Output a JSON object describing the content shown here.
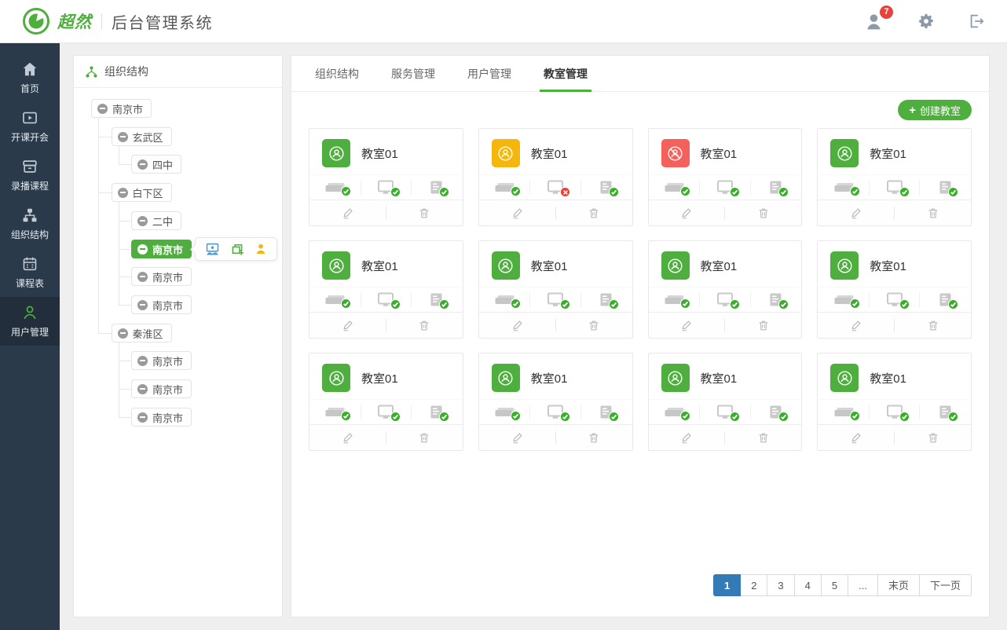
{
  "header": {
    "brand": "超然",
    "title": "后台管理系统",
    "notification_count": "7"
  },
  "sidebar": {
    "items": [
      {
        "key": "home",
        "label": "首页",
        "active": false
      },
      {
        "key": "video",
        "label": "开课开会",
        "active": false
      },
      {
        "key": "archive",
        "label": "录播课程",
        "active": false
      },
      {
        "key": "sitemap",
        "label": "组织结构",
        "active": false
      },
      {
        "key": "calendar",
        "label": "课程表",
        "active": false
      },
      {
        "key": "user",
        "label": "用户管理",
        "active": true
      }
    ]
  },
  "tree_panel": {
    "title": "组织结构",
    "nodes": [
      {
        "label": "南京市",
        "level": 0,
        "selected": false
      },
      {
        "label": "玄武区",
        "level": 1,
        "selected": false
      },
      {
        "label": "四中",
        "level": 2,
        "selected": false
      },
      {
        "label": "白下区",
        "level": 1,
        "selected": false
      },
      {
        "label": "二中",
        "level": 2,
        "selected": false
      },
      {
        "label": "南京市",
        "level": 2,
        "selected": true,
        "actions": [
          {
            "key": "classroom",
            "color": "#4a9bdb"
          },
          {
            "key": "add-org",
            "color": "#4faf3e"
          },
          {
            "key": "add-user",
            "color": "#f5b60d"
          }
        ]
      },
      {
        "label": "南京市",
        "level": 2,
        "selected": false
      },
      {
        "label": "南京市",
        "level": 2,
        "selected": false
      },
      {
        "label": "秦淮区",
        "level": 1,
        "selected": false
      },
      {
        "label": "南京市",
        "level": 2,
        "selected": false
      },
      {
        "label": "南京市",
        "level": 2,
        "selected": false
      },
      {
        "label": "南京市",
        "level": 2,
        "selected": false
      }
    ]
  },
  "main": {
    "tabs": [
      {
        "key": "org",
        "label": "组织结构",
        "active": false
      },
      {
        "key": "service",
        "label": "服务管理",
        "active": false
      },
      {
        "key": "users",
        "label": "用户管理",
        "active": false
      },
      {
        "key": "classrooms",
        "label": "教室管理",
        "active": true
      }
    ],
    "create_button": {
      "icon": "+",
      "label": "创建教室"
    },
    "cards": [
      {
        "name": "教室01",
        "avatar": "green",
        "statuses": [
          {
            "device": "recorder",
            "status": "ok"
          },
          {
            "device": "display",
            "status": "ok"
          },
          {
            "device": "server",
            "status": "ok"
          }
        ]
      },
      {
        "name": "教室01",
        "avatar": "yellow",
        "statuses": [
          {
            "device": "recorder",
            "status": "ok"
          },
          {
            "device": "display",
            "status": "err"
          },
          {
            "device": "server",
            "status": "ok"
          }
        ]
      },
      {
        "name": "教室01",
        "avatar": "red",
        "statuses": [
          {
            "device": "recorder",
            "status": "ok"
          },
          {
            "device": "display",
            "status": "ok"
          },
          {
            "device": "server",
            "status": "ok"
          }
        ]
      },
      {
        "name": "教室01",
        "avatar": "green",
        "statuses": [
          {
            "device": "recorder",
            "status": "ok"
          },
          {
            "device": "display",
            "status": "ok"
          },
          {
            "device": "server",
            "status": "ok"
          }
        ]
      },
      {
        "name": "教室01",
        "avatar": "green",
        "statuses": [
          {
            "device": "recorder",
            "status": "ok"
          },
          {
            "device": "display",
            "status": "ok"
          },
          {
            "device": "server",
            "status": "ok"
          }
        ]
      },
      {
        "name": "教室01",
        "avatar": "green",
        "statuses": [
          {
            "device": "recorder",
            "status": "ok"
          },
          {
            "device": "display",
            "status": "ok"
          },
          {
            "device": "server",
            "status": "ok"
          }
        ]
      },
      {
        "name": "教室01",
        "avatar": "green",
        "statuses": [
          {
            "device": "recorder",
            "status": "ok"
          },
          {
            "device": "display",
            "status": "ok"
          },
          {
            "device": "server",
            "status": "ok"
          }
        ]
      },
      {
        "name": "教室01",
        "avatar": "green",
        "statuses": [
          {
            "device": "recorder",
            "status": "ok"
          },
          {
            "device": "display",
            "status": "ok"
          },
          {
            "device": "server",
            "status": "ok"
          }
        ]
      },
      {
        "name": "教室01",
        "avatar": "green",
        "statuses": [
          {
            "device": "recorder",
            "status": "ok"
          },
          {
            "device": "display",
            "status": "ok"
          },
          {
            "device": "server",
            "status": "ok"
          }
        ]
      },
      {
        "name": "教室01",
        "avatar": "green",
        "statuses": [
          {
            "device": "recorder",
            "status": "ok"
          },
          {
            "device": "display",
            "status": "ok"
          },
          {
            "device": "server",
            "status": "ok"
          }
        ]
      },
      {
        "name": "教室01",
        "avatar": "green",
        "statuses": [
          {
            "device": "recorder",
            "status": "ok"
          },
          {
            "device": "display",
            "status": "ok"
          },
          {
            "device": "server",
            "status": "ok"
          }
        ]
      },
      {
        "name": "教室01",
        "avatar": "green",
        "statuses": [
          {
            "device": "recorder",
            "status": "ok"
          },
          {
            "device": "display",
            "status": "ok"
          },
          {
            "device": "server",
            "status": "ok"
          }
        ]
      }
    ],
    "pagination": [
      {
        "key": "1",
        "label": "1",
        "active": true
      },
      {
        "key": "2",
        "label": "2",
        "active": false
      },
      {
        "key": "3",
        "label": "3",
        "active": false
      },
      {
        "key": "4",
        "label": "4",
        "active": false
      },
      {
        "key": "5",
        "label": "5",
        "active": false
      },
      {
        "key": "ellipsis",
        "label": "...",
        "active": false
      },
      {
        "key": "last",
        "label": "末页",
        "active": false
      },
      {
        "key": "next",
        "label": "下一页",
        "active": false
      }
    ]
  },
  "colors": {
    "accent_green": "#4faf3e",
    "check_green": "#3aad2b",
    "error_red": "#ef3b30",
    "warning_yellow": "#f5b60d",
    "danger_red": "#f4615c",
    "pagination_blue": "#337ab7",
    "badge_red": "#e6433c",
    "sidebar_bg": "#2b3a4a"
  }
}
